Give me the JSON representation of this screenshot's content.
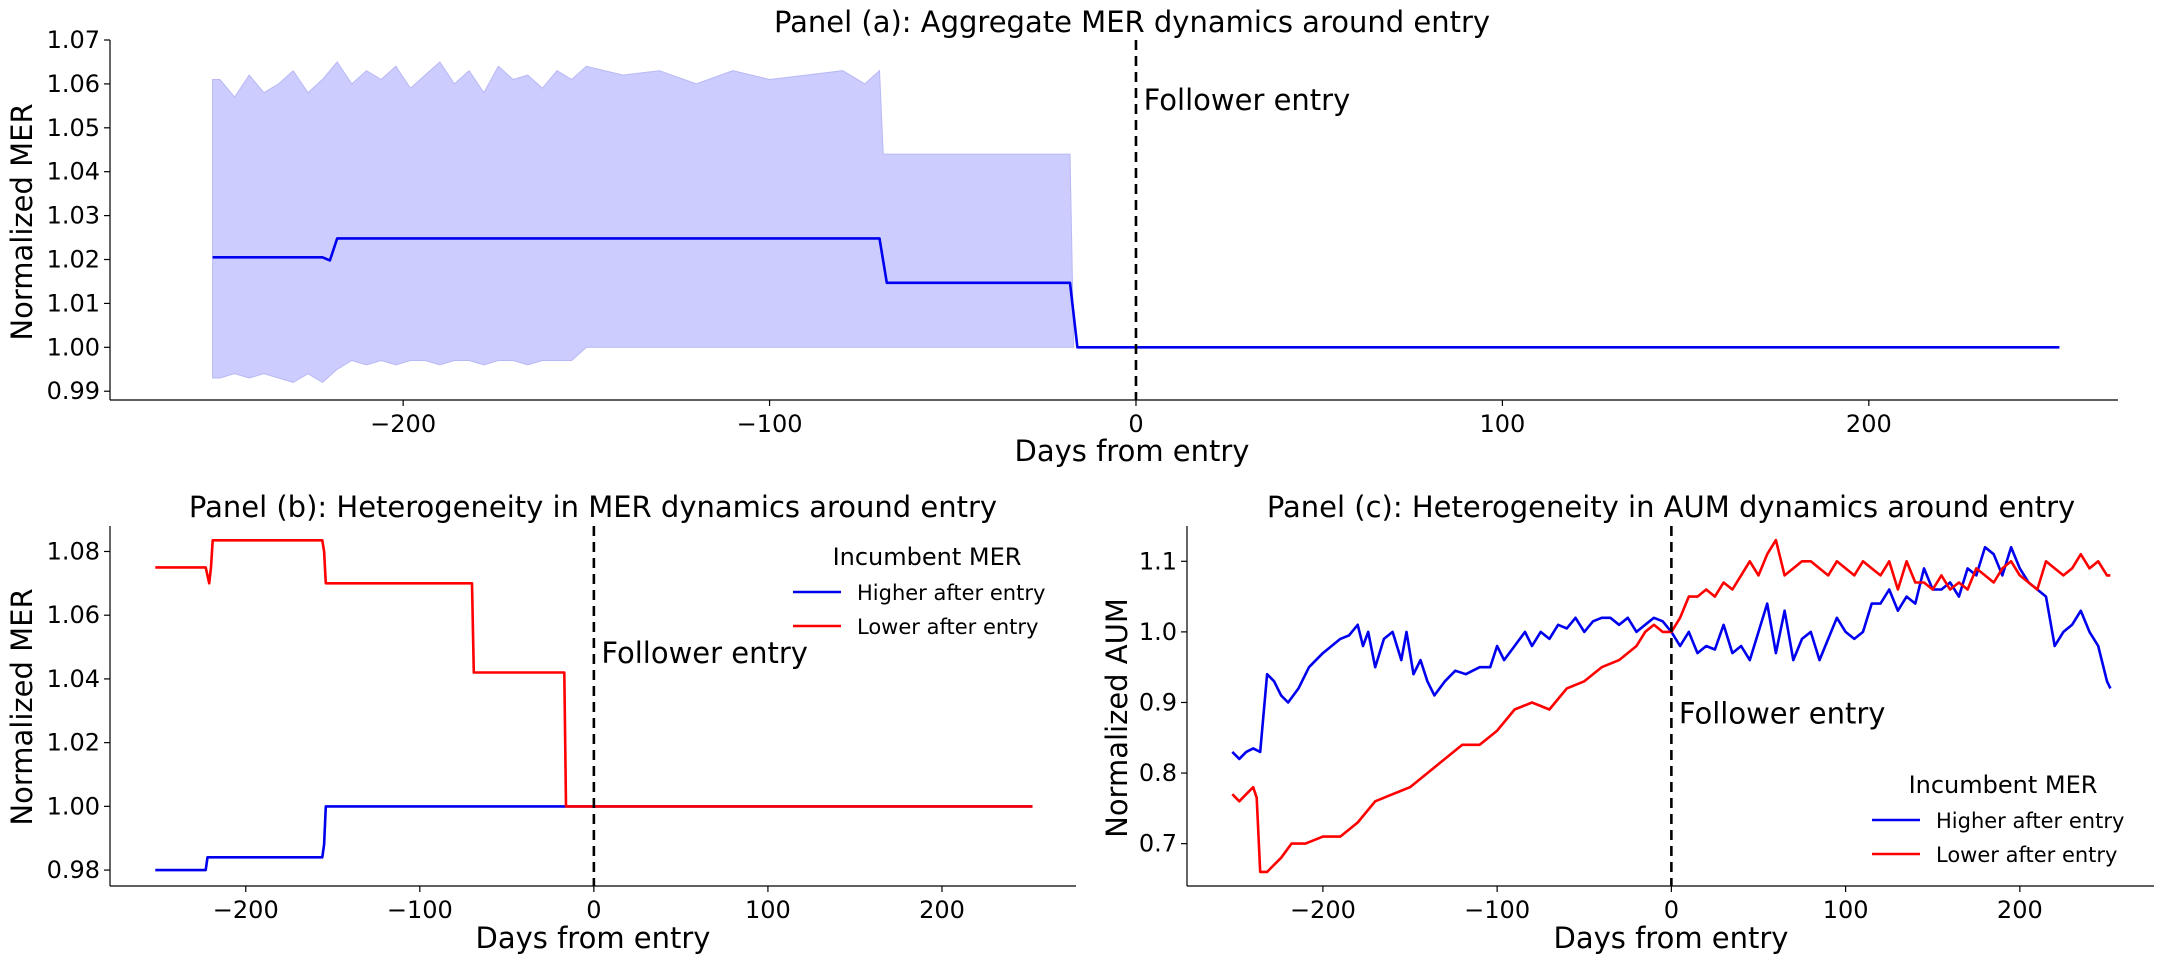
{
  "chart_data": [
    {
      "id": "a",
      "type": "line",
      "title": "Panel (a): Aggregate MER dynamics around entry",
      "xlabel": "Days from entry",
      "ylabel": "Normalized MER",
      "xlim": [
        -280,
        268
      ],
      "ylim": [
        0.988,
        1.07
      ],
      "xticks": [
        -200,
        -100,
        0,
        100,
        200
      ],
      "xtick_labels": [
        "−200",
        "−100",
        "0",
        "100",
        "200"
      ],
      "yticks": [
        0.99,
        1.0,
        1.01,
        1.02,
        1.03,
        1.04,
        1.05,
        1.06,
        1.07
      ],
      "ytick_labels": [
        "0.99",
        "1.00",
        "1.01",
        "1.02",
        "1.03",
        "1.04",
        "1.05",
        "1.06",
        "1.07"
      ],
      "annotation": {
        "text": "Follower entry",
        "x": 1,
        "y": 1.054
      },
      "vline_x": 0,
      "colors": {
        "line": "#0000ee",
        "band": "#ccccff",
        "band_edge": "#b8b8f5"
      },
      "series": [
        {
          "x": [
            -252,
            -222,
            -220,
            -218,
            -70,
            -68,
            -18,
            -16,
            252
          ],
          "values": [
            1.0205,
            1.0205,
            1.0198,
            1.0248,
            1.0248,
            1.0147,
            1.0147,
            1.0,
            1.0
          ]
        }
      ],
      "band": {
        "x": [
          -252,
          -250,
          -246,
          -242,
          -238,
          -234,
          -230,
          -226,
          -222,
          -218,
          -214,
          -210,
          -206,
          -202,
          -198,
          -194,
          -190,
          -186,
          -182,
          -178,
          -174,
          -170,
          -166,
          -162,
          -158,
          -154,
          -150,
          -140,
          -130,
          -120,
          -110,
          -100,
          -90,
          -80,
          -74,
          -70,
          -69,
          -60,
          -50,
          -40,
          -30,
          -18,
          -17
        ],
        "upper": [
          1.061,
          1.061,
          1.057,
          1.062,
          1.058,
          1.06,
          1.063,
          1.058,
          1.061,
          1.065,
          1.06,
          1.063,
          1.061,
          1.064,
          1.059,
          1.062,
          1.065,
          1.06,
          1.063,
          1.058,
          1.064,
          1.061,
          1.062,
          1.059,
          1.063,
          1.061,
          1.064,
          1.062,
          1.063,
          1.06,
          1.063,
          1.061,
          1.062,
          1.063,
          1.06,
          1.063,
          1.044,
          1.044,
          1.044,
          1.044,
          1.044,
          1.044,
          1.0
        ],
        "lower": [
          0.993,
          0.993,
          0.994,
          0.993,
          0.994,
          0.993,
          0.992,
          0.994,
          0.992,
          0.995,
          0.997,
          0.996,
          0.997,
          0.996,
          0.997,
          0.997,
          0.996,
          0.997,
          0.997,
          0.996,
          0.997,
          0.997,
          0.996,
          0.997,
          0.997,
          0.997,
          1.0,
          1.0,
          1.0,
          1.0,
          1.0,
          1.0,
          1.0,
          1.0,
          1.0,
          1.0,
          1.0,
          1.0,
          1.0,
          1.0,
          1.0,
          1.0,
          1.0
        ]
      }
    },
    {
      "id": "b",
      "type": "line",
      "title": "Panel (b): Heterogeneity in MER dynamics around entry",
      "xlabel": "Days from entry",
      "ylabel": "Normalized MER",
      "xlim": [
        -278,
        277
      ],
      "ylim": [
        0.975,
        1.088
      ],
      "xticks": [
        -200,
        -100,
        0,
        100,
        200
      ],
      "xtick_labels": [
        "−200",
        "−100",
        "0",
        "100",
        "200"
      ],
      "yticks": [
        0.98,
        1.0,
        1.02,
        1.04,
        1.06,
        1.08
      ],
      "ytick_labels": [
        "0.98",
        "1.00",
        "1.02",
        "1.04",
        "1.06",
        "1.08"
      ],
      "annotation": {
        "text": "Follower entry",
        "x": 2,
        "y": 1.045
      },
      "vline_x": 0,
      "legend": {
        "title": "Incumbent MER",
        "placement": "upper right"
      },
      "series": [
        {
          "name": "Higher after entry",
          "color": "#0000ee",
          "x": [
            -252,
            -223,
            -222,
            -156,
            -155,
            -154,
            252
          ],
          "values": [
            0.98,
            0.98,
            0.984,
            0.984,
            0.988,
            1.0,
            1.0
          ]
        },
        {
          "name": "Lower after entry",
          "color": "#ff0000",
          "x": [
            -252,
            -223,
            -221,
            -220,
            -219,
            -156,
            -155,
            -154,
            -70,
            -69,
            -17,
            -16,
            252
          ],
          "values": [
            1.075,
            1.075,
            1.07,
            1.075,
            1.0835,
            1.0835,
            1.08,
            1.07,
            1.07,
            1.042,
            1.042,
            1.0,
            1.0
          ]
        }
      ]
    },
    {
      "id": "c",
      "type": "line",
      "title": "Panel (c): Heterogeneity in AUM dynamics around entry",
      "xlabel": "Days from entry",
      "ylabel": "Normalized AUM",
      "xlim": [
        -278,
        277
      ],
      "ylim": [
        0.64,
        1.15
      ],
      "xticks": [
        -200,
        -100,
        0,
        100,
        200
      ],
      "xtick_labels": [
        "−200",
        "−100",
        "0",
        "100",
        "200"
      ],
      "yticks": [
        0.7,
        0.8,
        0.9,
        1.0,
        1.1
      ],
      "ytick_labels": [
        "0.7",
        "0.8",
        "0.9",
        "1.0",
        "1.1"
      ],
      "annotation": {
        "text": "Follower entry",
        "x": 2,
        "y": 0.87
      },
      "vline_x": 0,
      "legend": {
        "title": "Incumbent MER",
        "placement": "lower right"
      },
      "series": [
        {
          "name": "Higher after entry",
          "color": "#0000ee",
          "x": [
            -252,
            -248,
            -244,
            -240,
            -236,
            -232,
            -228,
            -224,
            -220,
            -214,
            -208,
            -200,
            -195,
            -190,
            -185,
            -180,
            -177,
            -174,
            -170,
            -165,
            -160,
            -155,
            -152,
            -148,
            -144,
            -140,
            -136,
            -130,
            -124,
            -118,
            -110,
            -104,
            -100,
            -96,
            -90,
            -84,
            -80,
            -75,
            -70,
            -65,
            -60,
            -55,
            -50,
            -45,
            -40,
            -35,
            -30,
            -25,
            -20,
            -15,
            -10,
            -5,
            0,
            5,
            10,
            15,
            20,
            25,
            30,
            35,
            40,
            45,
            50,
            55,
            60,
            65,
            70,
            75,
            80,
            85,
            90,
            95,
            100,
            105,
            110,
            115,
            120,
            125,
            130,
            135,
            140,
            145,
            150,
            155,
            160,
            165,
            170,
            175,
            180,
            185,
            190,
            195,
            200,
            205,
            210,
            215,
            220,
            225,
            230,
            235,
            240,
            245,
            250,
            252
          ],
          "values": [
            0.83,
            0.82,
            0.83,
            0.835,
            0.83,
            0.94,
            0.93,
            0.91,
            0.9,
            0.92,
            0.95,
            0.97,
            0.98,
            0.99,
            0.995,
            1.01,
            0.98,
            1.0,
            0.95,
            0.99,
            1.0,
            0.96,
            1.0,
            0.94,
            0.96,
            0.93,
            0.91,
            0.93,
            0.945,
            0.94,
            0.95,
            0.95,
            0.98,
            0.96,
            0.98,
            1.0,
            0.98,
            1.0,
            0.99,
            1.01,
            1.005,
            1.02,
            1.0,
            1.015,
            1.02,
            1.02,
            1.01,
            1.02,
            1.0,
            1.01,
            1.02,
            1.015,
            1.0,
            0.98,
            1.0,
            0.97,
            0.98,
            0.975,
            1.01,
            0.97,
            0.98,
            0.96,
            1.0,
            1.04,
            0.97,
            1.03,
            0.96,
            0.99,
            1.0,
            0.96,
            0.99,
            1.02,
            1.0,
            0.99,
            1.0,
            1.04,
            1.04,
            1.06,
            1.03,
            1.05,
            1.04,
            1.09,
            1.06,
            1.06,
            1.07,
            1.05,
            1.09,
            1.08,
            1.12,
            1.11,
            1.08,
            1.12,
            1.09,
            1.07,
            1.06,
            1.05,
            0.98,
            1.0,
            1.01,
            1.03,
            1.0,
            0.98,
            0.93,
            0.92
          ]
        },
        {
          "name": "Lower after entry",
          "color": "#ff0000",
          "x": [
            -252,
            -248,
            -244,
            -240,
            -238,
            -236,
            -232,
            -228,
            -224,
            -218,
            -210,
            -200,
            -190,
            -180,
            -170,
            -160,
            -150,
            -140,
            -130,
            -120,
            -110,
            -100,
            -90,
            -80,
            -70,
            -60,
            -50,
            -40,
            -30,
            -20,
            -15,
            -10,
            -5,
            0,
            5,
            10,
            15,
            20,
            25,
            30,
            35,
            40,
            45,
            50,
            55,
            60,
            65,
            70,
            75,
            80,
            85,
            90,
            95,
            100,
            105,
            110,
            115,
            120,
            125,
            130,
            135,
            140,
            145,
            150,
            155,
            160,
            165,
            170,
            175,
            180,
            185,
            190,
            195,
            200,
            205,
            210,
            215,
            220,
            225,
            230,
            235,
            240,
            245,
            250,
            252
          ],
          "values": [
            0.77,
            0.76,
            0.77,
            0.78,
            0.765,
            0.66,
            0.66,
            0.67,
            0.68,
            0.7,
            0.7,
            0.71,
            0.71,
            0.73,
            0.76,
            0.77,
            0.78,
            0.8,
            0.82,
            0.84,
            0.84,
            0.86,
            0.89,
            0.9,
            0.89,
            0.92,
            0.93,
            0.95,
            0.96,
            0.98,
            1.0,
            1.01,
            1.0,
            1.0,
            1.02,
            1.05,
            1.05,
            1.06,
            1.05,
            1.07,
            1.06,
            1.08,
            1.1,
            1.08,
            1.11,
            1.13,
            1.08,
            1.09,
            1.1,
            1.1,
            1.09,
            1.08,
            1.1,
            1.09,
            1.08,
            1.1,
            1.09,
            1.08,
            1.1,
            1.06,
            1.1,
            1.07,
            1.07,
            1.06,
            1.08,
            1.06,
            1.07,
            1.06,
            1.09,
            1.08,
            1.07,
            1.09,
            1.1,
            1.08,
            1.07,
            1.06,
            1.1,
            1.09,
            1.08,
            1.09,
            1.11,
            1.09,
            1.1,
            1.08,
            1.08
          ]
        }
      ]
    }
  ]
}
